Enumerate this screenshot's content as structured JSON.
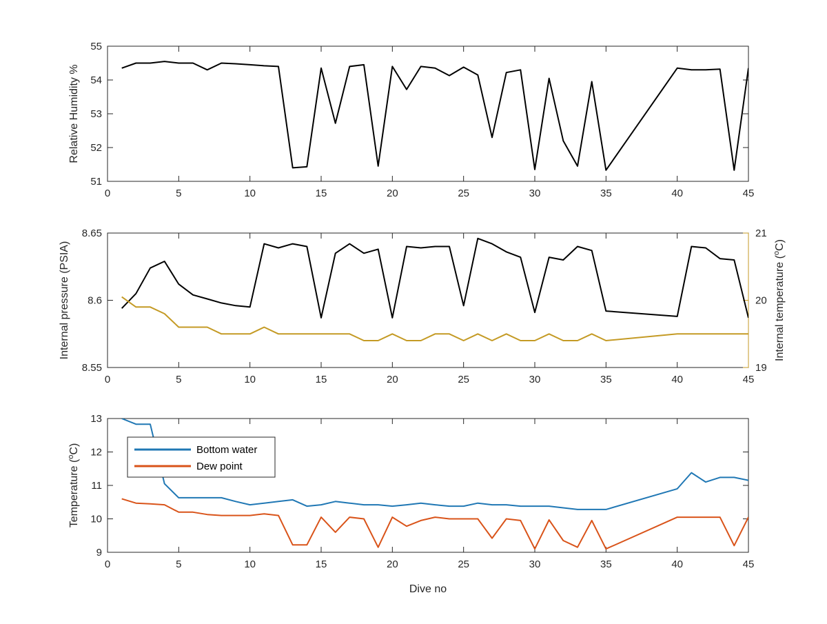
{
  "chart_data": [
    {
      "type": "line",
      "xlabel": "",
      "ylabel": "Relative Humidity %",
      "xlim": [
        0,
        45
      ],
      "ylim": [
        51,
        55
      ],
      "xticks": [
        "0",
        "5",
        "10",
        "15",
        "20",
        "25",
        "30",
        "35",
        "40",
        "45"
      ],
      "yticks": [
        "51",
        "52",
        "53",
        "54",
        "55"
      ],
      "grid": false,
      "series": [
        {
          "color": "#000000",
          "x": [
            1,
            2,
            3,
            4,
            5,
            6,
            7,
            8,
            9,
            10,
            11,
            12,
            13,
            14,
            15,
            16,
            17,
            18,
            19,
            20,
            21,
            22,
            23,
            24,
            25,
            26,
            27,
            28,
            29,
            30,
            31,
            32,
            33,
            34,
            35,
            40,
            41,
            42,
            43,
            44,
            45
          ],
          "values": [
            54.35,
            54.5,
            54.5,
            54.55,
            54.5,
            54.5,
            54.3,
            54.5,
            54.48,
            54.45,
            54.42,
            54.4,
            51.4,
            51.43,
            54.35,
            52.72,
            54.4,
            54.45,
            51.45,
            54.4,
            53.72,
            54.4,
            54.35,
            54.13,
            54.38,
            54.15,
            52.3,
            54.22,
            54.3,
            51.35,
            54.05,
            52.2,
            51.45,
            53.95,
            51.33,
            54.35,
            54.3,
            54.3,
            54.32,
            51.33,
            54.35
          ]
        }
      ]
    },
    {
      "type": "line",
      "xlabel": "",
      "ylabel": "Internal pressure (PSIA)",
      "ylabel_right": "Internal temperature (°C)",
      "xlim": [
        0,
        45
      ],
      "ylim": [
        8.55,
        8.65
      ],
      "ylim_right": [
        19,
        21
      ],
      "xticks": [
        "0",
        "5",
        "10",
        "15",
        "20",
        "25",
        "30",
        "35",
        "40",
        "45"
      ],
      "yticks": [
        "8.55",
        "8.6",
        "8.65"
      ],
      "yticks_right": [
        "19",
        "20",
        "21"
      ],
      "grid": false,
      "series": [
        {
          "color": "#000000",
          "axis": "left",
          "x": [
            1,
            2,
            3,
            4,
            5,
            6,
            7,
            8,
            9,
            10,
            11,
            12,
            13,
            14,
            15,
            16,
            17,
            18,
            19,
            20,
            21,
            22,
            23,
            24,
            25,
            26,
            27,
            28,
            29,
            30,
            31,
            32,
            33,
            34,
            35,
            40,
            41,
            42,
            43,
            44,
            45
          ],
          "values": [
            8.594,
            8.605,
            8.624,
            8.629,
            8.612,
            8.604,
            8.601,
            8.598,
            8.596,
            8.595,
            8.642,
            8.639,
            8.642,
            8.64,
            8.587,
            8.635,
            8.642,
            8.635,
            8.638,
            8.587,
            8.64,
            8.639,
            8.64,
            8.64,
            8.596,
            8.646,
            8.642,
            8.636,
            8.632,
            8.591,
            8.632,
            8.63,
            8.64,
            8.637,
            8.592,
            8.588,
            8.64,
            8.639,
            8.631,
            8.63,
            8.587
          ]
        },
        {
          "color": "#c49a24",
          "axis": "right",
          "x": [
            1,
            2,
            3,
            4,
            5,
            6,
            7,
            8,
            9,
            10,
            11,
            12,
            13,
            14,
            15,
            16,
            17,
            18,
            19,
            20,
            21,
            22,
            23,
            24,
            25,
            26,
            27,
            28,
            29,
            30,
            31,
            32,
            33,
            34,
            35,
            40,
            41,
            42,
            43,
            44,
            45
          ],
          "values": [
            20.05,
            19.9,
            19.9,
            19.8,
            19.6,
            19.6,
            19.6,
            19.5,
            19.5,
            19.5,
            19.6,
            19.5,
            19.5,
            19.5,
            19.5,
            19.5,
            19.5,
            19.4,
            19.4,
            19.5,
            19.4,
            19.4,
            19.5,
            19.5,
            19.4,
            19.5,
            19.4,
            19.5,
            19.4,
            19.4,
            19.5,
            19.4,
            19.4,
            19.5,
            19.4,
            19.5,
            19.5,
            19.5,
            19.5,
            19.5,
            19.5
          ]
        }
      ]
    },
    {
      "type": "line",
      "xlabel": "Dive no",
      "ylabel": "Temperature (°C)",
      "xlim": [
        0,
        45
      ],
      "ylim": [
        9,
        13
      ],
      "xticks": [
        "0",
        "5",
        "10",
        "15",
        "20",
        "25",
        "30",
        "35",
        "40",
        "45"
      ],
      "yticks": [
        "9",
        "10",
        "11",
        "12",
        "13"
      ],
      "grid": false,
      "legend_position": "top-left",
      "series": [
        {
          "name": "Bottom water",
          "color": "#1f77b4",
          "x": [
            1,
            2,
            3,
            4,
            5,
            6,
            7,
            8,
            9,
            10,
            11,
            12,
            13,
            14,
            15,
            16,
            17,
            18,
            19,
            20,
            21,
            22,
            23,
            24,
            25,
            26,
            27,
            28,
            29,
            30,
            31,
            32,
            33,
            34,
            35,
            40,
            41,
            42,
            43,
            44,
            45
          ],
          "values": [
            13.0,
            12.83,
            12.83,
            11.05,
            10.63,
            10.63,
            10.63,
            10.63,
            10.52,
            10.42,
            10.47,
            10.52,
            10.57,
            10.38,
            10.42,
            10.52,
            10.47,
            10.42,
            10.42,
            10.38,
            10.42,
            10.47,
            10.42,
            10.38,
            10.38,
            10.47,
            10.42,
            10.42,
            10.38,
            10.38,
            10.38,
            10.33,
            10.28,
            10.28,
            10.28,
            10.9,
            11.38,
            11.1,
            11.24,
            11.24,
            11.15
          ]
        },
        {
          "name": "Dew point",
          "color": "#d95319",
          "x": [
            1,
            2,
            3,
            4,
            5,
            6,
            7,
            8,
            9,
            10,
            11,
            12,
            13,
            14,
            15,
            16,
            17,
            18,
            19,
            20,
            21,
            22,
            23,
            24,
            25,
            26,
            27,
            28,
            29,
            30,
            31,
            32,
            33,
            34,
            35,
            40,
            41,
            42,
            43,
            44,
            45
          ],
          "values": [
            10.6,
            10.47,
            10.45,
            10.42,
            10.2,
            10.2,
            10.13,
            10.1,
            10.1,
            10.1,
            10.15,
            10.1,
            9.22,
            9.22,
            10.05,
            9.6,
            10.05,
            10.0,
            9.15,
            10.05,
            9.78,
            9.95,
            10.05,
            10.0,
            10.0,
            10.0,
            9.42,
            10.0,
            9.95,
            9.1,
            9.97,
            9.35,
            9.15,
            9.95,
            9.1,
            10.05,
            10.05,
            10.05,
            10.05,
            9.2,
            10.05
          ]
        }
      ]
    }
  ]
}
